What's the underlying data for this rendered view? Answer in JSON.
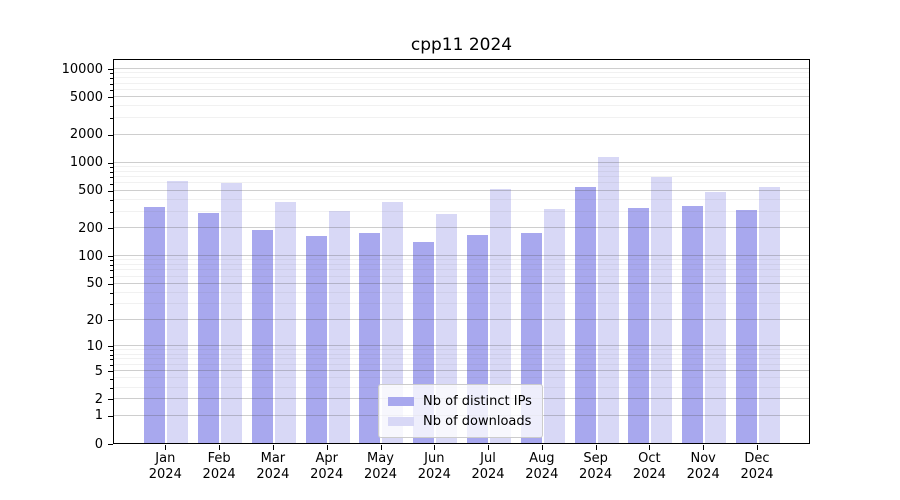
{
  "window": {
    "background": "#ffffff"
  },
  "chart_data": {
    "type": "bar",
    "title": "cpp11 2024",
    "xlabel": "",
    "ylabel": "",
    "categories": [
      "Jan",
      "Feb",
      "Mar",
      "Apr",
      "May",
      "Jun",
      "Jul",
      "Aug",
      "Sep",
      "Oct",
      "Nov",
      "Dec"
    ],
    "category_year": "2024",
    "series": [
      {
        "name": "Nb of distinct IPs",
        "color": "#a8a8ee",
        "values": [
          326,
          281,
          186,
          162,
          173,
          137,
          165,
          172,
          534,
          318,
          334,
          305
        ]
      },
      {
        "name": "Nb of downloads",
        "color": "#d8d8f6",
        "values": [
          628,
          590,
          369,
          296,
          369,
          277,
          511,
          313,
          1115,
          682,
          472,
          534
        ]
      }
    ],
    "y_scale": "log10(1+v)",
    "y_ticks": [
      0,
      1,
      2,
      5,
      10,
      20,
      50,
      100,
      200,
      500,
      1000,
      2000,
      5000,
      10000
    ],
    "y_minor_ticks": [
      3,
      4,
      6,
      7,
      8,
      9,
      30,
      40,
      60,
      70,
      80,
      90,
      300,
      400,
      600,
      700,
      800,
      900,
      3000,
      4000,
      6000,
      7000,
      8000,
      9000
    ],
    "ylim": [
      0,
      12900
    ],
    "grid": true,
    "legend_position": "lower center"
  }
}
